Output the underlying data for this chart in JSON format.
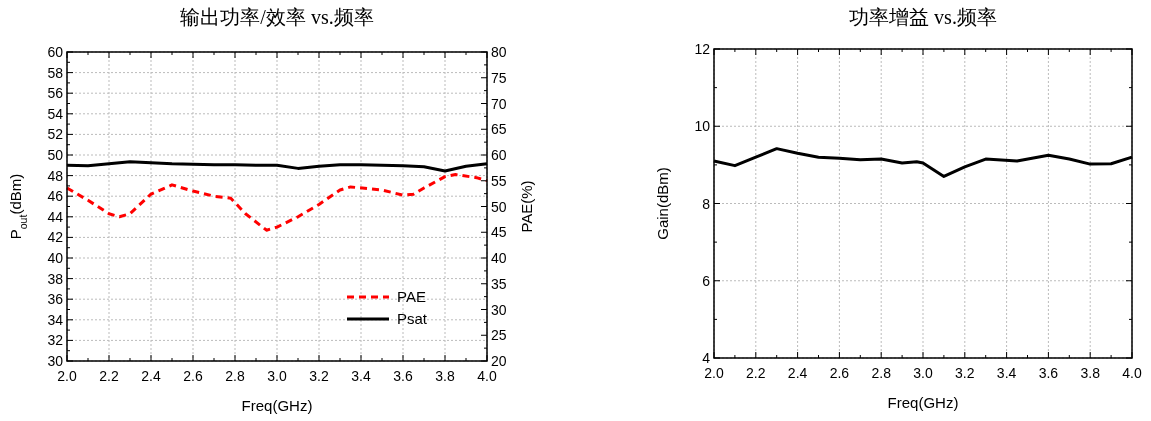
{
  "chart_data": [
    {
      "type": "line",
      "title": "输出功率/效率 vs.频率",
      "xlabel": "Freq(GHz)",
      "ylabel": "P$_{out}$(dBm)",
      "y2label": "PAE(%)",
      "xlim": [
        2,
        4
      ],
      "xticks": [
        {
          "value": 2,
          "label": "2.0"
        },
        {
          "value": 2.1,
          "label": null
        },
        {
          "value": 2.2,
          "label": "2.2"
        },
        {
          "value": 2.3,
          "label": null
        },
        {
          "value": 2.4,
          "label": "2.4"
        },
        {
          "value": 2.5,
          "label": null
        },
        {
          "value": 2.6,
          "label": "2.6"
        },
        {
          "value": 2.7,
          "label": null
        },
        {
          "value": 2.8,
          "label": "2.8"
        },
        {
          "value": 2.9,
          "label": null
        },
        {
          "value": 3,
          "label": "3.0"
        },
        {
          "value": 3.1,
          "label": null
        },
        {
          "value": 3.2,
          "label": "3.2"
        },
        {
          "value": 3.3,
          "label": null
        },
        {
          "value": 3.4,
          "label": "3.4"
        },
        {
          "value": 3.5,
          "label": null
        },
        {
          "value": 3.6,
          "label": "3.6"
        },
        {
          "value": 3.7,
          "label": null
        },
        {
          "value": 3.8,
          "label": "3.8"
        },
        {
          "value": 3.9,
          "label": null
        },
        {
          "value": 4,
          "label": "4.0"
        }
      ],
      "ylim": [
        30,
        60
      ],
      "yticks": [
        30,
        {
          "value": 31,
          "label": null
        },
        32,
        {
          "value": 33,
          "label": null
        },
        34,
        {
          "value": 35,
          "label": null
        },
        36,
        {
          "value": 37,
          "label": null
        },
        38,
        {
          "value": 39,
          "label": null
        },
        40,
        {
          "value": 41,
          "label": null
        },
        42,
        {
          "value": 43,
          "label": null
        },
        44,
        {
          "value": 45,
          "label": null
        },
        46,
        {
          "value": 47,
          "label": null
        },
        48,
        {
          "value": 49,
          "label": null
        },
        50,
        {
          "value": 51,
          "label": null
        },
        52,
        {
          "value": 53,
          "label": null
        },
        54,
        {
          "value": 55,
          "label": null
        },
        56,
        {
          "value": 57,
          "label": null
        },
        58,
        {
          "value": 59,
          "label": null
        },
        60
      ],
      "y2lim": [
        20,
        80
      ],
      "y2ticks": [
        20,
        {
          "value": 22.5,
          "label": null
        },
        25,
        {
          "value": 27.5,
          "label": null
        },
        30,
        {
          "value": 32.5,
          "label": null
        },
        35,
        {
          "value": 37.5,
          "label": null
        },
        40,
        {
          "value": 42.5,
          "label": null
        },
        45,
        {
          "value": 47.5,
          "label": null
        },
        50,
        {
          "value": 52.5,
          "label": null
        },
        55,
        {
          "value": 57.5,
          "label": null
        },
        60,
        {
          "value": 62.5,
          "label": null
        },
        65,
        {
          "value": 67.5,
          "label": null
        },
        70,
        {
          "value": 72.5,
          "label": null
        },
        75,
        {
          "value": 77.5,
          "label": null
        },
        80
      ],
      "grid": true,
      "legend": "bottom right",
      "series": [
        {
          "name": "PAE",
          "color": "#ff0000",
          "axis": "y2",
          "line_style": "dashed",
          "x": [
            2.0,
            2.1,
            2.2,
            2.25,
            2.3,
            2.4,
            2.5,
            2.6,
            2.7,
            2.78,
            2.85,
            2.95,
            3.0,
            3.1,
            3.2,
            3.3,
            3.35,
            3.5,
            3.6,
            3.65,
            3.7,
            3.8,
            3.85,
            3.95,
            4.0
          ],
          "values": [
            53.6,
            51.2,
            48.6,
            48,
            48.6,
            52.4,
            54.2,
            53,
            52,
            51.6,
            48.6,
            45.4,
            46,
            48,
            50.4,
            53.2,
            53.8,
            53.2,
            52.2,
            52.4,
            53.6,
            55.8,
            56.2,
            55.6,
            55
          ]
        },
        {
          "name": "Psat",
          "color": "#000000",
          "line_style": "solid",
          "x": [
            2.0,
            2.1,
            2.2,
            2.3,
            2.4,
            2.5,
            2.6,
            2.7,
            2.8,
            2.9,
            3.0,
            3.1,
            3.2,
            3.3,
            3.4,
            3.5,
            3.6,
            3.7,
            3.8,
            3.9,
            4.0
          ],
          "values": [
            49.0,
            48.95,
            49.15,
            49.35,
            49.25,
            49.15,
            49.1,
            49.05,
            49.05,
            49.0,
            49.0,
            48.7,
            48.9,
            49.05,
            49.05,
            49.0,
            48.95,
            48.85,
            48.45,
            48.9,
            49.15
          ]
        }
      ]
    },
    {
      "type": "line",
      "title": "功率增益 vs.频率",
      "xlabel": "Freq(GHz)",
      "ylabel": "Gain(dBm)",
      "xlim": [
        2,
        4
      ],
      "xticks": [
        {
          "value": 2,
          "label": "2.0"
        },
        {
          "value": 2.1,
          "label": null
        },
        {
          "value": 2.2,
          "label": "2.2"
        },
        {
          "value": 2.3,
          "label": null
        },
        {
          "value": 2.4,
          "label": "2.4"
        },
        {
          "value": 2.5,
          "label": null
        },
        {
          "value": 2.6,
          "label": "2.6"
        },
        {
          "value": 2.7,
          "label": null
        },
        {
          "value": 2.8,
          "label": "2.8"
        },
        {
          "value": 2.9,
          "label": null
        },
        {
          "value": 3,
          "label": "3.0"
        },
        {
          "value": 3.1,
          "label": null
        },
        {
          "value": 3.2,
          "label": "3.2"
        },
        {
          "value": 3.3,
          "label": null
        },
        {
          "value": 3.4,
          "label": "3.4"
        },
        {
          "value": 3.5,
          "label": null
        },
        {
          "value": 3.6,
          "label": "3.6"
        },
        {
          "value": 3.7,
          "label": null
        },
        {
          "value": 3.8,
          "label": "3.8"
        },
        {
          "value": 3.9,
          "label": null
        },
        {
          "value": 4,
          "label": "4.0"
        }
      ],
      "ylim": [
        4,
        12
      ],
      "yticks": [
        4,
        {
          "value": 5,
          "label": null
        },
        6,
        {
          "value": 7,
          "label": null
        },
        8,
        {
          "value": 9,
          "label": null
        },
        10,
        {
          "value": 11,
          "label": null
        },
        12
      ],
      "grid": true,
      "series": [
        {
          "color": "#000000",
          "line_style": "solid",
          "x": [
            2.0,
            2.1,
            2.2,
            2.3,
            2.4,
            2.5,
            2.6,
            2.7,
            2.8,
            2.9,
            2.97,
            3.0,
            3.1,
            3.2,
            3.3,
            3.45,
            3.6,
            3.7,
            3.8,
            3.9,
            4.0
          ],
          "values": [
            9.1,
            8.98,
            9.2,
            9.42,
            9.3,
            9.2,
            9.17,
            9.13,
            9.15,
            9.05,
            9.08,
            9.05,
            8.7,
            8.95,
            9.15,
            9.1,
            9.25,
            9.15,
            9.02,
            9.03,
            9.2
          ]
        }
      ]
    }
  ]
}
